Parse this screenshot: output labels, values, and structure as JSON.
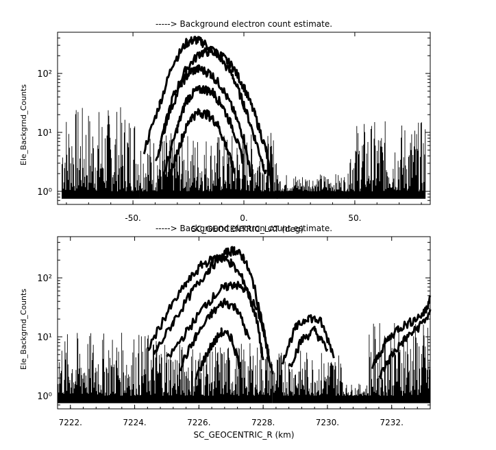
{
  "chart_data": [
    {
      "type": "line",
      "title": "-----> Background electron count estimate.",
      "xlabel": "SC_GEOCENTRIC_LAT (deg)",
      "ylabel": "Ele_Backgrnd_Counts",
      "xlim": [
        -84,
        84
      ],
      "ylim": [
        0.6,
        500
      ],
      "yscale": "log",
      "x_ticks": [
        -50,
        0,
        50
      ],
      "x_tick_labels": [
        "-50.",
        "0.",
        "50."
      ],
      "y_ticks": [
        1,
        10,
        100
      ],
      "y_tick_labels": [
        "10⁰",
        "10¹",
        "10²"
      ],
      "series": [
        {
          "x": [
            -45,
            -38,
            -32,
            -26,
            -22,
            -18,
            -12,
            -5,
            0,
            5,
            10
          ],
          "values": [
            5,
            30,
            150,
            330,
            380,
            330,
            220,
            90,
            30,
            8,
            2
          ]
        },
        {
          "x": [
            -38,
            -32,
            -26,
            -20,
            -15,
            -10,
            -5,
            0,
            5,
            10,
            13
          ],
          "values": [
            6,
            40,
            120,
            220,
            240,
            200,
            130,
            60,
            20,
            5,
            1
          ]
        },
        {
          "x": [
            -40,
            -34,
            -28,
            -24,
            -20,
            -15,
            -10,
            -5,
            0,
            3
          ],
          "values": [
            3,
            20,
            70,
            110,
            120,
            100,
            60,
            25,
            8,
            2
          ]
        },
        {
          "x": [
            -36,
            -30,
            -26,
            -22,
            -18,
            -14,
            -10,
            -5,
            0
          ],
          "values": [
            2,
            12,
            35,
            50,
            55,
            48,
            30,
            12,
            3
          ]
        },
        {
          "x": [
            -33,
            -28,
            -24,
            -20,
            -16,
            -12,
            -8,
            -4
          ],
          "values": [
            2,
            8,
            18,
            22,
            20,
            14,
            6,
            2
          ]
        }
      ],
      "noise_bands": [
        {
          "x_range": [
            -82,
            -47
          ],
          "y_max": 28
        },
        {
          "x_range": [
            -47,
            15
          ],
          "y_max": 10
        },
        {
          "x_range": [
            15,
            47
          ],
          "y_max": 2
        },
        {
          "x_range": [
            47,
            82
          ],
          "y_max": 16
        }
      ]
    },
    {
      "type": "line",
      "title": "-----> Background electron count estimate.",
      "xlabel": "SC_GEOCENTRIC_R (km)",
      "ylabel": "Ele_Backgrnd_Counts",
      "xlim": [
        7221.6,
        7233.2
      ],
      "ylim": [
        0.6,
        500
      ],
      "yscale": "log",
      "x_ticks": [
        7222,
        7224,
        7226,
        7228,
        7230,
        7232
      ],
      "x_tick_labels": [
        "7222.",
        "7224.",
        "7226.",
        "7228.",
        "7230.",
        "7232."
      ],
      "y_ticks": [
        1,
        10,
        100
      ],
      "y_tick_labels": [
        "10⁰",
        "10¹",
        "10²"
      ],
      "series": [
        {
          "x": [
            7224.6,
            7225.2,
            7225.8,
            7226.3,
            7226.8,
            7227.1,
            7227.4,
            7227.7,
            7228.0,
            7228.3
          ],
          "values": [
            5,
            18,
            60,
            140,
            260,
            300,
            220,
            80,
            15,
            2
          ]
        },
        {
          "x": [
            7224.4,
            7225.0,
            7225.6,
            7226.1,
            7226.6,
            7227.0,
            7227.4,
            7227.8,
            7228.0
          ],
          "values": [
            6,
            25,
            80,
            170,
            230,
            180,
            90,
            20,
            4
          ]
        },
        {
          "x": [
            7225.0,
            7225.6,
            7226.2,
            7226.7,
            7227.1,
            7227.5,
            7227.9,
            7228.2
          ],
          "values": [
            4,
            12,
            35,
            65,
            80,
            60,
            22,
            4
          ]
        },
        {
          "x": [
            7225.4,
            7225.9,
            7226.4,
            7226.8,
            7227.2,
            7227.6
          ],
          "values": [
            3,
            10,
            25,
            40,
            30,
            8
          ]
        },
        {
          "x": [
            7225.9,
            7226.3,
            7226.7,
            7227.0,
            7227.3
          ],
          "values": [
            2,
            6,
            12,
            10,
            3
          ]
        },
        {
          "x": [
            7228.6,
            7229.0,
            7229.4,
            7229.8,
            7230.2
          ],
          "values": [
            4,
            14,
            22,
            18,
            5
          ]
        },
        {
          "x": [
            7228.8,
            7229.2,
            7229.6,
            7230.0
          ],
          "values": [
            3,
            9,
            13,
            6
          ]
        },
        {
          "x": [
            7231.4,
            7231.8,
            7232.2,
            7232.6,
            7233.0,
            7233.2
          ],
          "values": [
            3,
            8,
            14,
            18,
            25,
            45
          ]
        },
        {
          "x": [
            7231.6,
            7232.0,
            7232.4,
            7232.8,
            7233.2
          ],
          "values": [
            2,
            5,
            9,
            14,
            25
          ]
        }
      ],
      "noise_bands": [
        {
          "x_range": [
            7221.6,
            7225.0
          ],
          "y_max": 12
        },
        {
          "x_range": [
            7225.0,
            7228.3
          ],
          "y_max": 8
        },
        {
          "x_range": [
            7228.3,
            7230.5
          ],
          "y_max": 6
        },
        {
          "x_range": [
            7230.5,
            7231.3
          ],
          "y_max": 1.6
        },
        {
          "x_range": [
            7231.3,
            7233.2
          ],
          "y_max": 18
        }
      ]
    }
  ]
}
